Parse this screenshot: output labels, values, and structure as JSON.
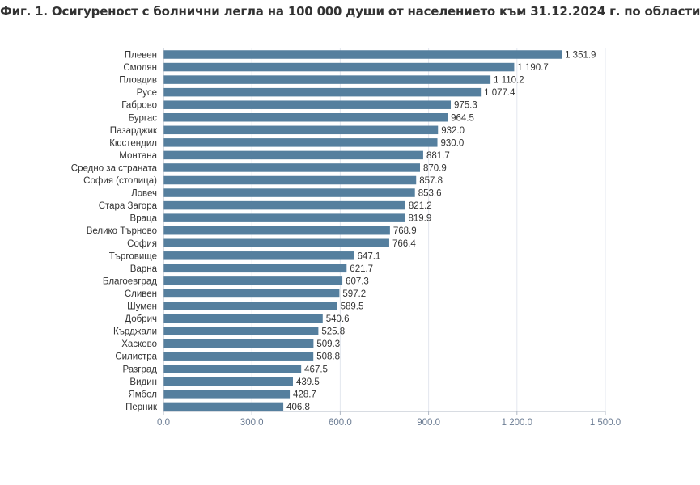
{
  "chart_data": {
    "type": "bar",
    "orientation": "horizontal",
    "title": "Фиг. 1. Осигуреност с болнични легла на 100 000 души от населението към 31.12.2024 г. по области",
    "categories": [
      "Плевен",
      "Смолян",
      "Пловдив",
      "Русе",
      "Габрово",
      "Бургас",
      "Пазарджик",
      "Кюстендил",
      "Монтана",
      "Средно за страната",
      "София (столица)",
      "Ловеч",
      "Стара Загора",
      "Враца",
      "Велико Търново",
      "София",
      "Търговище",
      "Варна",
      "Благоевград",
      "Сливен",
      "Шумен",
      "Добрич",
      "Кърджали",
      "Хасково",
      "Силистра",
      "Разград",
      "Видин",
      "Ямбол",
      "Перник"
    ],
    "values": [
      1351.9,
      1190.7,
      1110.2,
      1077.4,
      975.3,
      964.5,
      932.0,
      930.0,
      881.7,
      870.9,
      857.8,
      853.6,
      821.2,
      819.9,
      768.9,
      766.4,
      647.1,
      621.7,
      607.3,
      597.2,
      589.5,
      540.6,
      525.8,
      509.3,
      508.8,
      467.5,
      439.5,
      428.7,
      406.8
    ],
    "value_labels": [
      "1 351.9",
      "1 190.7",
      "1 110.2",
      "1 077.4",
      "975.3",
      "964.5",
      "932.0",
      "930.0",
      "881.7",
      "870.9",
      "857.8",
      "853.6",
      "821.2",
      "819.9",
      "768.9",
      "766.4",
      "647.1",
      "621.7",
      "607.3",
      "597.2",
      "589.5",
      "540.6",
      "525.8",
      "509.3",
      "508.8",
      "467.5",
      "439.5",
      "428.7",
      "406.8"
    ],
    "xlim": [
      0,
      1500
    ],
    "x_ticks": [
      0,
      300,
      600,
      900,
      1200,
      1500
    ],
    "x_tick_labels": [
      "0.0",
      "300.0",
      "600.0",
      "900.0",
      "1 200.0",
      "1 500.0"
    ],
    "grid": true,
    "legend": "none",
    "bar_color": "#557f9e",
    "grid_color": "#e3e7ef",
    "axis_color": "#b0b8c4"
  }
}
